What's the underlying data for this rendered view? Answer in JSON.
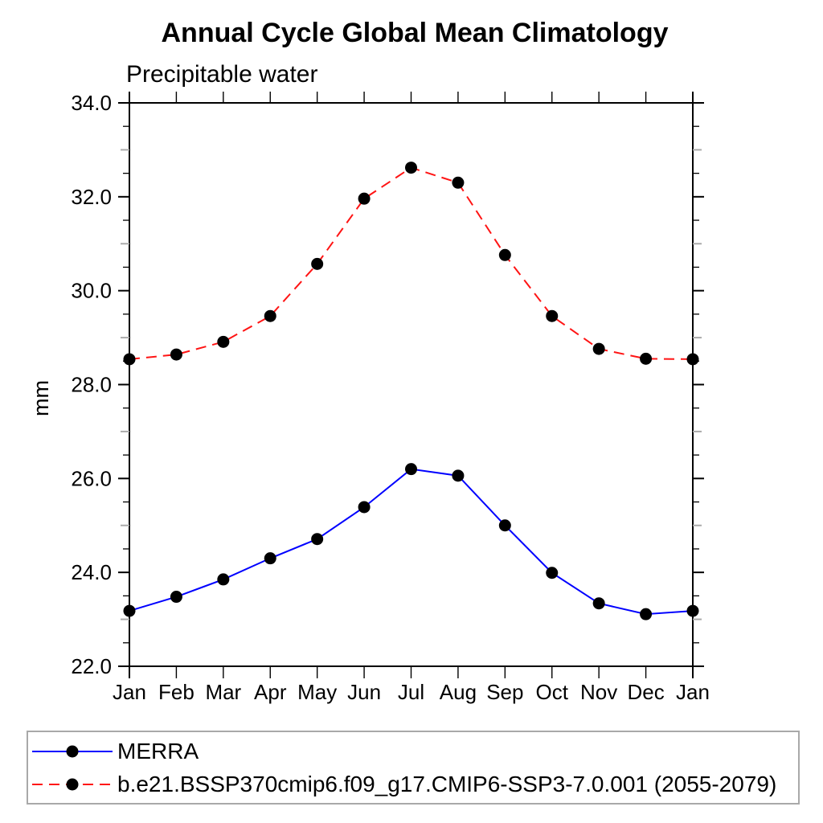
{
  "header": {
    "title": "Annual Cycle Global Mean Climatology",
    "subtitle": "Precipitable water"
  },
  "chart_data": {
    "type": "line",
    "title": "Annual Cycle Global Mean Climatology",
    "subtitle": "Precipitable water",
    "xlabel": "",
    "ylabel": "mm",
    "categories": [
      "Jan",
      "Feb",
      "Mar",
      "Apr",
      "May",
      "Jun",
      "Jul",
      "Aug",
      "Sep",
      "Oct",
      "Nov",
      "Dec",
      "Jan"
    ],
    "ylim": [
      22.0,
      34.0
    ],
    "y_major_values": [
      22,
      24,
      26,
      28,
      30,
      32,
      34
    ],
    "y_major_labels": [
      "22.0",
      "24.0",
      "26.0",
      "28.0",
      "30.0",
      "32.0",
      "34.0"
    ],
    "y_minor_half_values": [
      22.5,
      23.5,
      24.5,
      25.5,
      26.5,
      27.5,
      28.5,
      29.5,
      30.5,
      31.5,
      32.5,
      33.5
    ],
    "y_minor_unit_values": [
      23,
      25,
      27,
      29,
      31,
      33
    ],
    "grid": false,
    "legend_position": "bottom-left-box",
    "marker_color": "#000000",
    "series": [
      {
        "name": "MERRA",
        "color": "#0000ff",
        "line_style": "solid",
        "marker": "filled-circle",
        "values": [
          23.18,
          23.48,
          23.85,
          24.3,
          24.71,
          25.39,
          26.2,
          26.06,
          25.0,
          23.99,
          23.34,
          23.11,
          23.18
        ]
      },
      {
        "name": "b.e21.BSSP370cmip6.f09_g17.CMIP6-SSP3-7.0.001 (2055-2079)",
        "color": "#ff1414",
        "line_style": "dashed",
        "marker": "filled-circle",
        "values": [
          28.54,
          28.64,
          28.91,
          29.46,
          30.57,
          31.96,
          32.62,
          32.3,
          30.76,
          29.46,
          28.76,
          28.55,
          28.54
        ]
      }
    ]
  }
}
